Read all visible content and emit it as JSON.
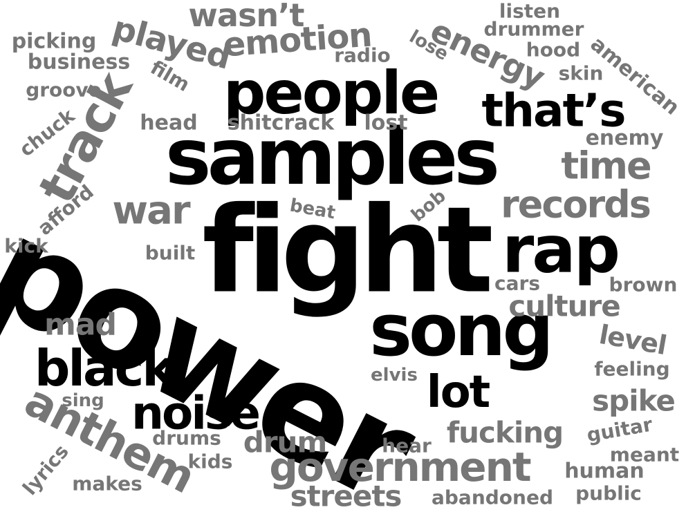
{
  "colors": {
    "primary": "#000000",
    "secondary": "#767676",
    "background": "#ffffff"
  },
  "words": [
    {
      "id": "power",
      "text": "power",
      "tone": "primary"
    },
    {
      "id": "fight",
      "text": "fight",
      "tone": "primary"
    },
    {
      "id": "samples",
      "text": "samples",
      "tone": "primary"
    },
    {
      "id": "people",
      "text": "people",
      "tone": "primary"
    },
    {
      "id": "song",
      "text": "song",
      "tone": "primary"
    },
    {
      "id": "rap",
      "text": "rap",
      "tone": "primary"
    },
    {
      "id": "that-s",
      "text": "that’s",
      "tone": "primary"
    },
    {
      "id": "noise",
      "text": "noise",
      "tone": "primary"
    },
    {
      "id": "black",
      "text": "black",
      "tone": "primary"
    },
    {
      "id": "lot",
      "text": "lot",
      "tone": "primary"
    },
    {
      "id": "track",
      "text": "track",
      "tone": "secondary"
    },
    {
      "id": "government",
      "text": "government",
      "tone": "secondary"
    },
    {
      "id": "anthem",
      "text": "anthem",
      "tone": "secondary"
    },
    {
      "id": "records",
      "text": "records",
      "tone": "secondary"
    },
    {
      "id": "time",
      "text": "time",
      "tone": "secondary"
    },
    {
      "id": "war",
      "text": "war",
      "tone": "secondary"
    },
    {
      "id": "emotion",
      "text": "emotion",
      "tone": "secondary"
    },
    {
      "id": "played",
      "text": "played",
      "tone": "secondary"
    },
    {
      "id": "energy",
      "text": "energy",
      "tone": "secondary"
    },
    {
      "id": "wasn-t",
      "text": "wasn’t",
      "tone": "secondary"
    },
    {
      "id": "culture",
      "text": "culture",
      "tone": "secondary"
    },
    {
      "id": "fucking",
      "text": "fucking",
      "tone": "secondary"
    },
    {
      "id": "drum",
      "text": "drum",
      "tone": "secondary"
    },
    {
      "id": "streets",
      "text": "streets",
      "tone": "secondary"
    },
    {
      "id": "mad",
      "text": "mad",
      "tone": "secondary"
    },
    {
      "id": "spike",
      "text": "spike",
      "tone": "secondary"
    },
    {
      "id": "level",
      "text": "level",
      "tone": "secondary"
    },
    {
      "id": "shitcrack",
      "text": "shitcrack",
      "tone": "secondary"
    },
    {
      "id": "head",
      "text": "head",
      "tone": "secondary"
    },
    {
      "id": "lost",
      "text": "lost",
      "tone": "secondary"
    },
    {
      "id": "radio",
      "text": "radio",
      "tone": "secondary"
    },
    {
      "id": "film",
      "text": "film",
      "tone": "secondary"
    },
    {
      "id": "lose",
      "text": "lose",
      "tone": "secondary"
    },
    {
      "id": "listen",
      "text": "listen",
      "tone": "secondary"
    },
    {
      "id": "drummer",
      "text": "drummer",
      "tone": "secondary"
    },
    {
      "id": "hood",
      "text": "hood",
      "tone": "secondary"
    },
    {
      "id": "american",
      "text": "american",
      "tone": "secondary"
    },
    {
      "id": "skin",
      "text": "skin",
      "tone": "secondary"
    },
    {
      "id": "enemy",
      "text": "enemy",
      "tone": "secondary"
    },
    {
      "id": "picking",
      "text": "picking",
      "tone": "secondary"
    },
    {
      "id": "business",
      "text": "business",
      "tone": "secondary"
    },
    {
      "id": "groove",
      "text": "groove",
      "tone": "secondary"
    },
    {
      "id": "chuck",
      "text": "chuck",
      "tone": "secondary"
    },
    {
      "id": "afford",
      "text": "afford",
      "tone": "secondary"
    },
    {
      "id": "kick",
      "text": "kick",
      "tone": "secondary"
    },
    {
      "id": "beat",
      "text": "beat",
      "tone": "secondary"
    },
    {
      "id": "bob",
      "text": "bob",
      "tone": "secondary"
    },
    {
      "id": "built",
      "text": "built",
      "tone": "secondary"
    },
    {
      "id": "cars",
      "text": "cars",
      "tone": "secondary"
    },
    {
      "id": "brown",
      "text": "brown",
      "tone": "secondary"
    },
    {
      "id": "feeling",
      "text": "feeling",
      "tone": "secondary"
    },
    {
      "id": "elvis",
      "text": "elvis",
      "tone": "secondary"
    },
    {
      "id": "sing",
      "text": "sing",
      "tone": "secondary"
    },
    {
      "id": "drums",
      "text": "drums",
      "tone": "secondary"
    },
    {
      "id": "hear",
      "text": "hear",
      "tone": "secondary"
    },
    {
      "id": "guitar",
      "text": "guitar",
      "tone": "secondary"
    },
    {
      "id": "meant",
      "text": "meant",
      "tone": "secondary"
    },
    {
      "id": "human",
      "text": "human",
      "tone": "secondary"
    },
    {
      "id": "public",
      "text": "public",
      "tone": "secondary"
    },
    {
      "id": "abandoned",
      "text": "abandoned",
      "tone": "secondary"
    },
    {
      "id": "kids",
      "text": "kids",
      "tone": "secondary"
    },
    {
      "id": "makes",
      "text": "makes",
      "tone": "secondary"
    },
    {
      "id": "lyrics",
      "text": "lyrics",
      "tone": "secondary"
    }
  ]
}
